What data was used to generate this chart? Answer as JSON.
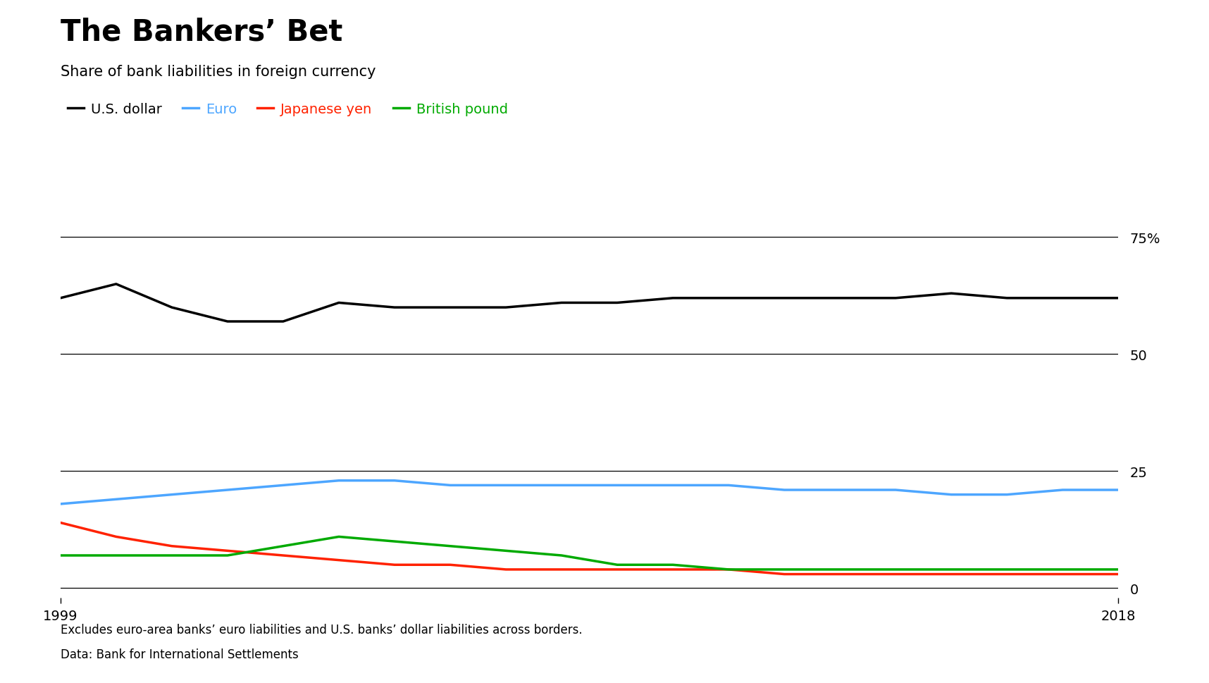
{
  "title": "The Bankers’ Bet",
  "subtitle": "Share of bank liabilities in foreign currency",
  "footnote1": "Excludes euro-area banks’ euro liabilities and U.S. banks’ dollar liabilities across borders.",
  "footnote2": "Data: Bank for International Settlements",
  "years": [
    1999,
    2000,
    2001,
    2002,
    2003,
    2004,
    2005,
    2006,
    2007,
    2008,
    2009,
    2010,
    2011,
    2012,
    2013,
    2014,
    2015,
    2016,
    2017,
    2018
  ],
  "usd": [
    62,
    65,
    60,
    57,
    57,
    61,
    60,
    60,
    60,
    61,
    61,
    62,
    62,
    62,
    62,
    62,
    63,
    62,
    62,
    62
  ],
  "euro": [
    18,
    19,
    20,
    21,
    22,
    23,
    23,
    22,
    22,
    22,
    22,
    22,
    22,
    21,
    21,
    21,
    20,
    20,
    21,
    21
  ],
  "yen": [
    14,
    11,
    9,
    8,
    7,
    6,
    5,
    5,
    4,
    4,
    4,
    4,
    4,
    3,
    3,
    3,
    3,
    3,
    3,
    3
  ],
  "gbp": [
    7,
    7,
    7,
    7,
    9,
    11,
    10,
    9,
    8,
    7,
    5,
    5,
    4,
    4,
    4,
    4,
    4,
    4,
    4,
    4
  ],
  "bg_color": "#ffffff",
  "usd_color": "#000000",
  "euro_color": "#4da6ff",
  "yen_color": "#ff2200",
  "gbp_color": "#00aa00",
  "line_width": 2.5,
  "legend_labels": [
    "U.S. dollar",
    "Euro",
    "Japanese yen",
    "British pound"
  ],
  "legend_colors": [
    "#000000",
    "#4da6ff",
    "#ff2200",
    "#00aa00"
  ],
  "ytick_positions": [
    0,
    25,
    50,
    75
  ],
  "ytick_labels": [
    "0",
    "25",
    "50",
    "75%"
  ]
}
